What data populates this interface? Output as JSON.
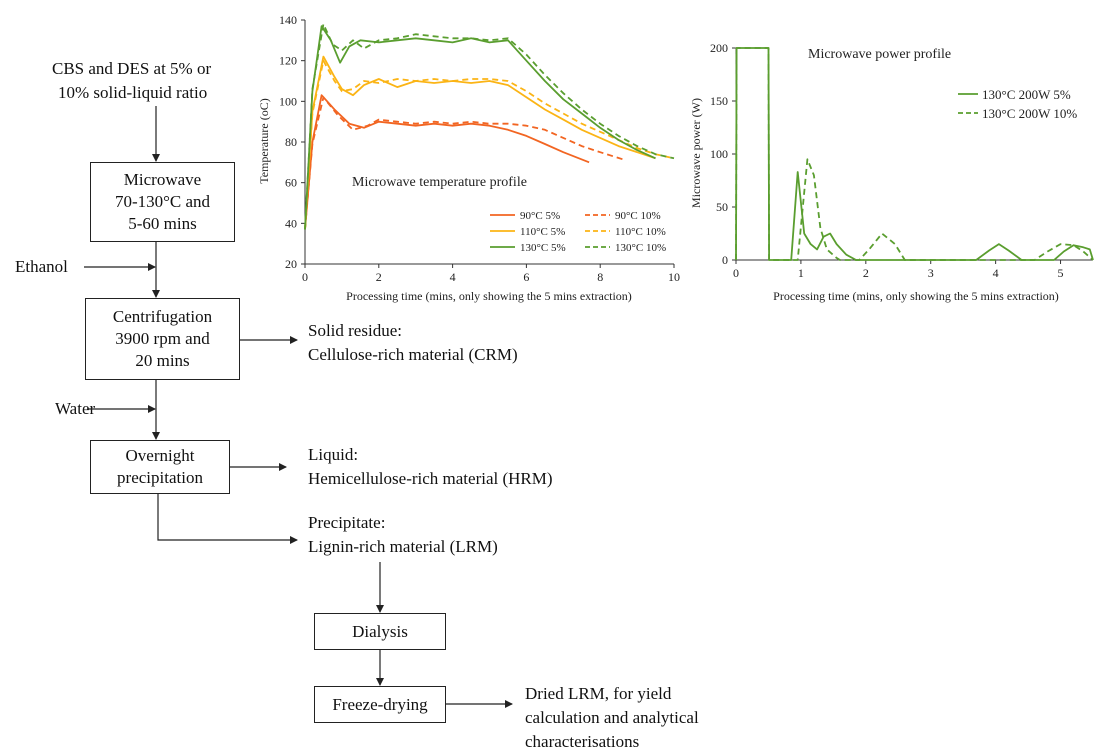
{
  "flowchart": {
    "input_line1": "CBS and DES at 5% or",
    "input_line2": "10% solid-liquid ratio",
    "microwave_box": "Microwave\n70-130°C and\n5-60 mins",
    "ethanol": "Ethanol",
    "centrifugation_box": "Centrifugation\n3900 rpm and\n20 mins",
    "water": "Water",
    "precipitation_box": "Overnight\nprecipitation",
    "solid_residue_title": "Solid residue:",
    "solid_residue_desc": "Cellulose-rich material (CRM)",
    "liquid_title": "Liquid:",
    "liquid_desc": "Hemicellulose-rich material (HRM)",
    "precipitate_title": "Precipitate:",
    "precipitate_desc": "Lignin-rich material (LRM)",
    "dialysis_box": "Dialysis",
    "freeze_drying_box": "Freeze-drying",
    "output_line1": "Dried LRM, for yield",
    "output_line2": "calculation and analytical",
    "output_line3": "characterisations"
  },
  "colors": {
    "c90": "#f26522",
    "c110": "#fbb415",
    "c130": "#5a9e2f",
    "axis": "#333333"
  },
  "chart_data": [
    {
      "type": "line",
      "title": "Microwave temperature profile",
      "xlabel": "Processing time (mins, only showing the 5 mins extraction)",
      "ylabel": "Temperature (oC)",
      "xlim": [
        0,
        10
      ],
      "ylim": [
        20,
        140
      ],
      "xticks": [
        "0",
        "2",
        "4",
        "6",
        "8",
        "10"
      ],
      "yticks": [
        "20",
        "40",
        "60",
        "80",
        "100",
        "120",
        "140"
      ],
      "grid": false,
      "legend_position": "bottom-right",
      "series": [
        {
          "name": "90°C 5%",
          "color": "#f26522",
          "dash": false,
          "x": [
            0,
            0.2,
            0.45,
            0.8,
            1.2,
            1.6,
            2.0,
            2.5,
            3.0,
            3.5,
            4.0,
            4.5,
            5.0,
            5.5,
            6.0,
            6.5,
            7.0,
            7.7
          ],
          "y": [
            37,
            80,
            103,
            96,
            89,
            87,
            90,
            89,
            88,
            89,
            88,
            89,
            88,
            86,
            83,
            79,
            75,
            70
          ]
        },
        {
          "name": "90°C 10%",
          "color": "#f26522",
          "dash": true,
          "x": [
            0,
            0.2,
            0.5,
            0.9,
            1.3,
            1.7,
            2.0,
            2.5,
            3.0,
            3.5,
            4.0,
            4.5,
            5.0,
            5.5,
            6.0,
            6.5,
            7.0,
            7.5,
            8.0,
            8.7
          ],
          "y": [
            37,
            79,
            102,
            93,
            86,
            88,
            91,
            90,
            89,
            90,
            89,
            90,
            89,
            89,
            88,
            86,
            82,
            78,
            75,
            71
          ]
        },
        {
          "name": "110°C 5%",
          "color": "#fbb415",
          "dash": false,
          "x": [
            0,
            0.2,
            0.5,
            0.8,
            1.0,
            1.3,
            1.6,
            2.0,
            2.5,
            3.0,
            3.5,
            4.0,
            4.5,
            5.0,
            5.5,
            6.0,
            6.5,
            7.0,
            7.5,
            8.0,
            8.5,
            9.0,
            9.5
          ],
          "y": [
            37,
            95,
            122,
            112,
            106,
            103,
            108,
            111,
            107,
            110,
            109,
            110,
            109,
            110,
            108,
            102,
            96,
            91,
            86,
            82,
            78,
            75,
            72
          ]
        },
        {
          "name": "110°C 10%",
          "color": "#fbb415",
          "dash": true,
          "x": [
            0,
            0.2,
            0.5,
            0.8,
            1.0,
            1.3,
            1.6,
            2.0,
            2.5,
            3.0,
            3.5,
            4.0,
            4.5,
            5.0,
            5.5,
            6.0,
            6.5,
            7.0,
            7.5,
            8.0,
            8.5,
            9.0,
            9.5,
            10.0
          ],
          "y": [
            37,
            94,
            120,
            110,
            105,
            106,
            110,
            109,
            111,
            110,
            111,
            110,
            111,
            111,
            110,
            105,
            99,
            94,
            89,
            85,
            81,
            77,
            74,
            72
          ]
        },
        {
          "name": "130°C 5%",
          "color": "#5a9e2f",
          "dash": false,
          "x": [
            0,
            0.2,
            0.45,
            0.7,
            0.95,
            1.2,
            1.5,
            2.0,
            2.5,
            3.0,
            3.5,
            4.0,
            4.5,
            5.0,
            5.5,
            6.0,
            6.5,
            7.0,
            7.5,
            8.0,
            8.5,
            9.0,
            9.5
          ],
          "y": [
            37,
            105,
            137,
            130,
            119,
            127,
            130,
            129,
            130,
            131,
            130,
            129,
            131,
            129,
            130,
            120,
            110,
            101,
            94,
            87,
            81,
            76,
            72
          ]
        },
        {
          "name": "130°C 10%",
          "color": "#5a9e2f",
          "dash": true,
          "x": [
            0,
            0.2,
            0.5,
            0.75,
            1.0,
            1.3,
            1.6,
            2.0,
            2.5,
            3.0,
            3.5,
            4.0,
            4.5,
            5.0,
            5.5,
            6.0,
            6.5,
            7.0,
            7.5,
            8.0,
            8.5,
            9.0,
            9.5,
            10.0
          ],
          "y": [
            37,
            106,
            138,
            128,
            125,
            130,
            126,
            130,
            131,
            133,
            132,
            131,
            131,
            130,
            131,
            123,
            113,
            104,
            96,
            89,
            83,
            78,
            74,
            72
          ]
        }
      ]
    },
    {
      "type": "line",
      "title": "Microwave power profile",
      "xlabel": "Processing time (mins, only showing the 5 mins extraction)",
      "ylabel": "Microwave power (W)",
      "xlim": [
        0,
        5.5
      ],
      "ylim": [
        0,
        200
      ],
      "xticks": [
        "0",
        "1",
        "2",
        "3",
        "4",
        "5"
      ],
      "yticks": [
        "0",
        "50",
        "100",
        "150",
        "200"
      ],
      "grid": false,
      "legend_position": "top-right",
      "series": [
        {
          "name": "130°C 200W 5%",
          "color": "#5a9e2f",
          "dash": false,
          "x": [
            0,
            0.01,
            0.5,
            0.51,
            0.85,
            0.95,
            1.05,
            1.15,
            1.25,
            1.35,
            1.45,
            1.55,
            1.7,
            1.85,
            2.0,
            3.7,
            3.9,
            4.05,
            4.2,
            4.4,
            4.9,
            5.05,
            5.2,
            5.35,
            5.45,
            5.5
          ],
          "y": [
            0,
            200,
            200,
            0,
            0,
            83,
            25,
            15,
            10,
            22,
            25,
            15,
            5,
            0,
            0,
            0,
            9,
            15,
            9,
            0,
            0,
            8,
            14,
            12,
            10,
            0
          ]
        },
        {
          "name": "130°C 200W 10%",
          "color": "#5a9e2f",
          "dash": true,
          "x": [
            0,
            0.01,
            0.5,
            0.51,
            0.95,
            1.1,
            1.2,
            1.3,
            1.4,
            1.55,
            1.6,
            1.9,
            2.05,
            2.25,
            2.45,
            2.6,
            4.6,
            4.8,
            5.0,
            5.2,
            5.35,
            5.5
          ],
          "y": [
            0,
            200,
            200,
            0,
            0,
            95,
            80,
            30,
            10,
            2,
            0,
            0,
            10,
            25,
            15,
            0,
            0,
            8,
            15,
            14,
            8,
            0
          ]
        }
      ]
    }
  ]
}
